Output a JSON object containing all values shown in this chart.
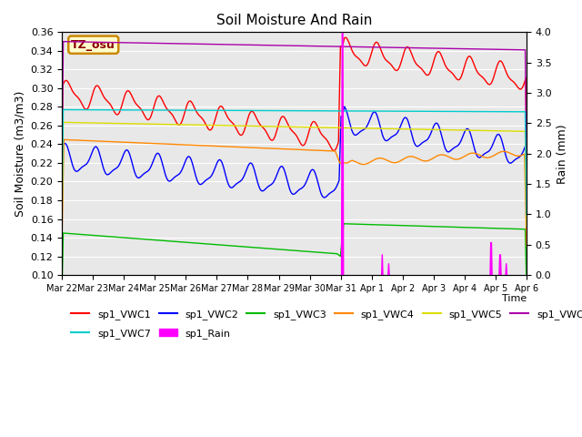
{
  "title": "Soil Moisture And Rain",
  "ylabel_left": "Soil Moisture (m3/m3)",
  "ylabel_right": "Rain (mm)",
  "xlabel": "Time",
  "ylim_left": [
    0.1,
    0.36
  ],
  "ylim_right": [
    0.0,
    4.0
  ],
  "annotation_text": "TZ_osu",
  "annotation_facecolor": "#ffffcc",
  "annotation_edgecolor": "#cc8800",
  "colors": {
    "VWC1": "#ff0000",
    "VWC2": "#0000ff",
    "VWC3": "#00bb00",
    "VWC4": "#ff8800",
    "VWC5": "#dddd00",
    "VWC6": "#aa00aa",
    "VWC7": "#00cccc",
    "Rain": "#ff00ff"
  },
  "xtick_labels": [
    "Mar 22",
    "Mar 23",
    "Mar 24",
    "Mar 25",
    "Mar 26",
    "Mar 27",
    "Mar 28",
    "Mar 29",
    "Mar 30",
    "Mar 31",
    "Apr 1",
    "Apr 2",
    "Apr 3",
    "Apr 4",
    "Apr 5",
    "Apr 6"
  ],
  "yticks_left": [
    0.1,
    0.12,
    0.14,
    0.16,
    0.18,
    0.2,
    0.22,
    0.24,
    0.26,
    0.28,
    0.3,
    0.32,
    0.34,
    0.36
  ],
  "yticks_right": [
    0.0,
    0.5,
    1.0,
    1.5,
    2.0,
    2.5,
    3.0,
    3.5,
    4.0
  ],
  "background_color": "#e8e8e8",
  "grid_color": "#ffffff",
  "figure_facecolor": "#ffffff",
  "n_days": 15,
  "rain_day": 9.0
}
